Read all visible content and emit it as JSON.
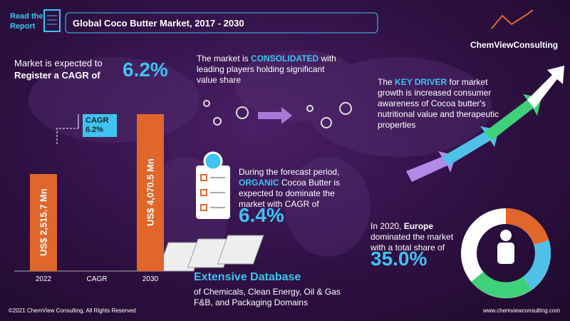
{
  "header": {
    "read_the": "Read the",
    "report": "Report",
    "title": "Global Coco Butter Market, 2017 - 2030",
    "brand": "ChemViewConsulting"
  },
  "cagr_block": {
    "line1": "Market is expected to",
    "line2": "Register a CAGR of",
    "value": "6.2%"
  },
  "chart_data": {
    "type": "bar",
    "categories": [
      "2022",
      "CAGR",
      "2030"
    ],
    "values": [
      2515.7,
      null,
      4070.5
    ],
    "value_labels": [
      "US$ 2,515.7 Mn",
      null,
      "US$ 4,070.5 Mn"
    ],
    "color": "#e0662b",
    "callout": {
      "label": "CAGR",
      "value": "6.2%"
    }
  },
  "consolidated": {
    "pre": "The market is",
    "highlight": "CONSOLIDATED",
    "rest": "with leading players holding significant value share"
  },
  "driver": {
    "pre": "The",
    "highlight": "KEY DRIVER",
    "rest": "for market growth is increased consumer awareness of Cocoa butter's nutritional value and therapeutic properties"
  },
  "organic": {
    "pre": "During the forecast period,",
    "highlight": "ORGANIC",
    "rest": "Cocoa Butter is expected to dominate the market with CAGR of",
    "value": "6.4%"
  },
  "europe": {
    "pre": "In 2020,",
    "highlight": "Europe",
    "rest": "dominated the market with a total share of",
    "value": "35.0%"
  },
  "database": {
    "title": "Extensive Database",
    "text": "of Chemicals, Clean Energy, Oil & Gas F&B, and Packaging Domains"
  },
  "footer": {
    "copyright": "©2021 ChemView Consulting,  All Rights Reserved",
    "website": "www.chemviewconsulting.com"
  }
}
